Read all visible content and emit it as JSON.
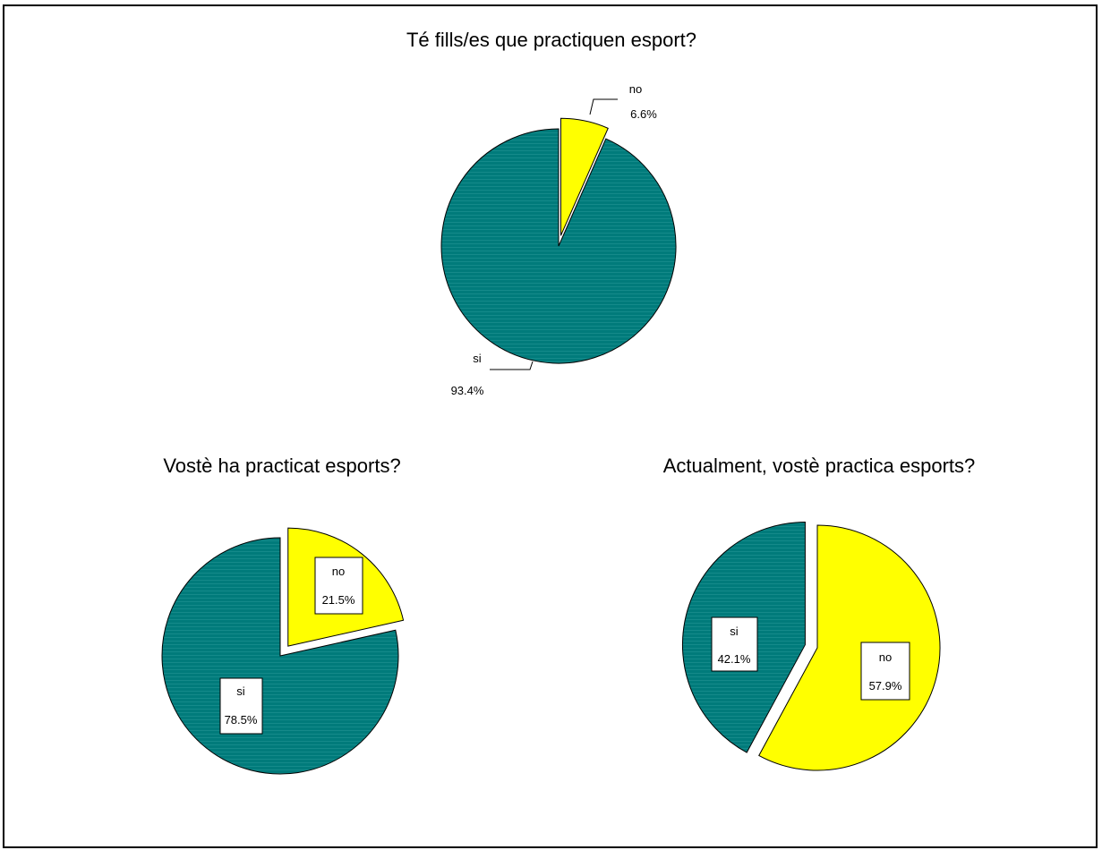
{
  "colors": {
    "si": "#007b7b",
    "no": "#ffff00",
    "outline": "#000000"
  },
  "chart_data": [
    {
      "type": "pie",
      "title": "Té fills/es que practiquen esport?",
      "slices": [
        {
          "label": "no",
          "value": 6.6,
          "value_label": "6.6%",
          "exploded": true
        },
        {
          "label": "si",
          "value": 93.4,
          "value_label": "93.4%",
          "exploded": false
        }
      ],
      "label_style": "callout-outside"
    },
    {
      "type": "pie",
      "title": "Vostè ha practicat esports?",
      "slices": [
        {
          "label": "no",
          "value": 21.5,
          "value_label": "21.5%",
          "exploded": true
        },
        {
          "label": "si",
          "value": 78.5,
          "value_label": "78.5%",
          "exploded": false
        }
      ],
      "label_style": "boxed-inside"
    },
    {
      "type": "pie",
      "title": "Actualment, vostè practica esports?",
      "slices": [
        {
          "label": "no",
          "value": 57.9,
          "value_label": "57.9%",
          "exploded": false
        },
        {
          "label": "si",
          "value": 42.1,
          "value_label": "42.1%",
          "exploded": true
        }
      ],
      "label_style": "boxed-inside"
    }
  ]
}
